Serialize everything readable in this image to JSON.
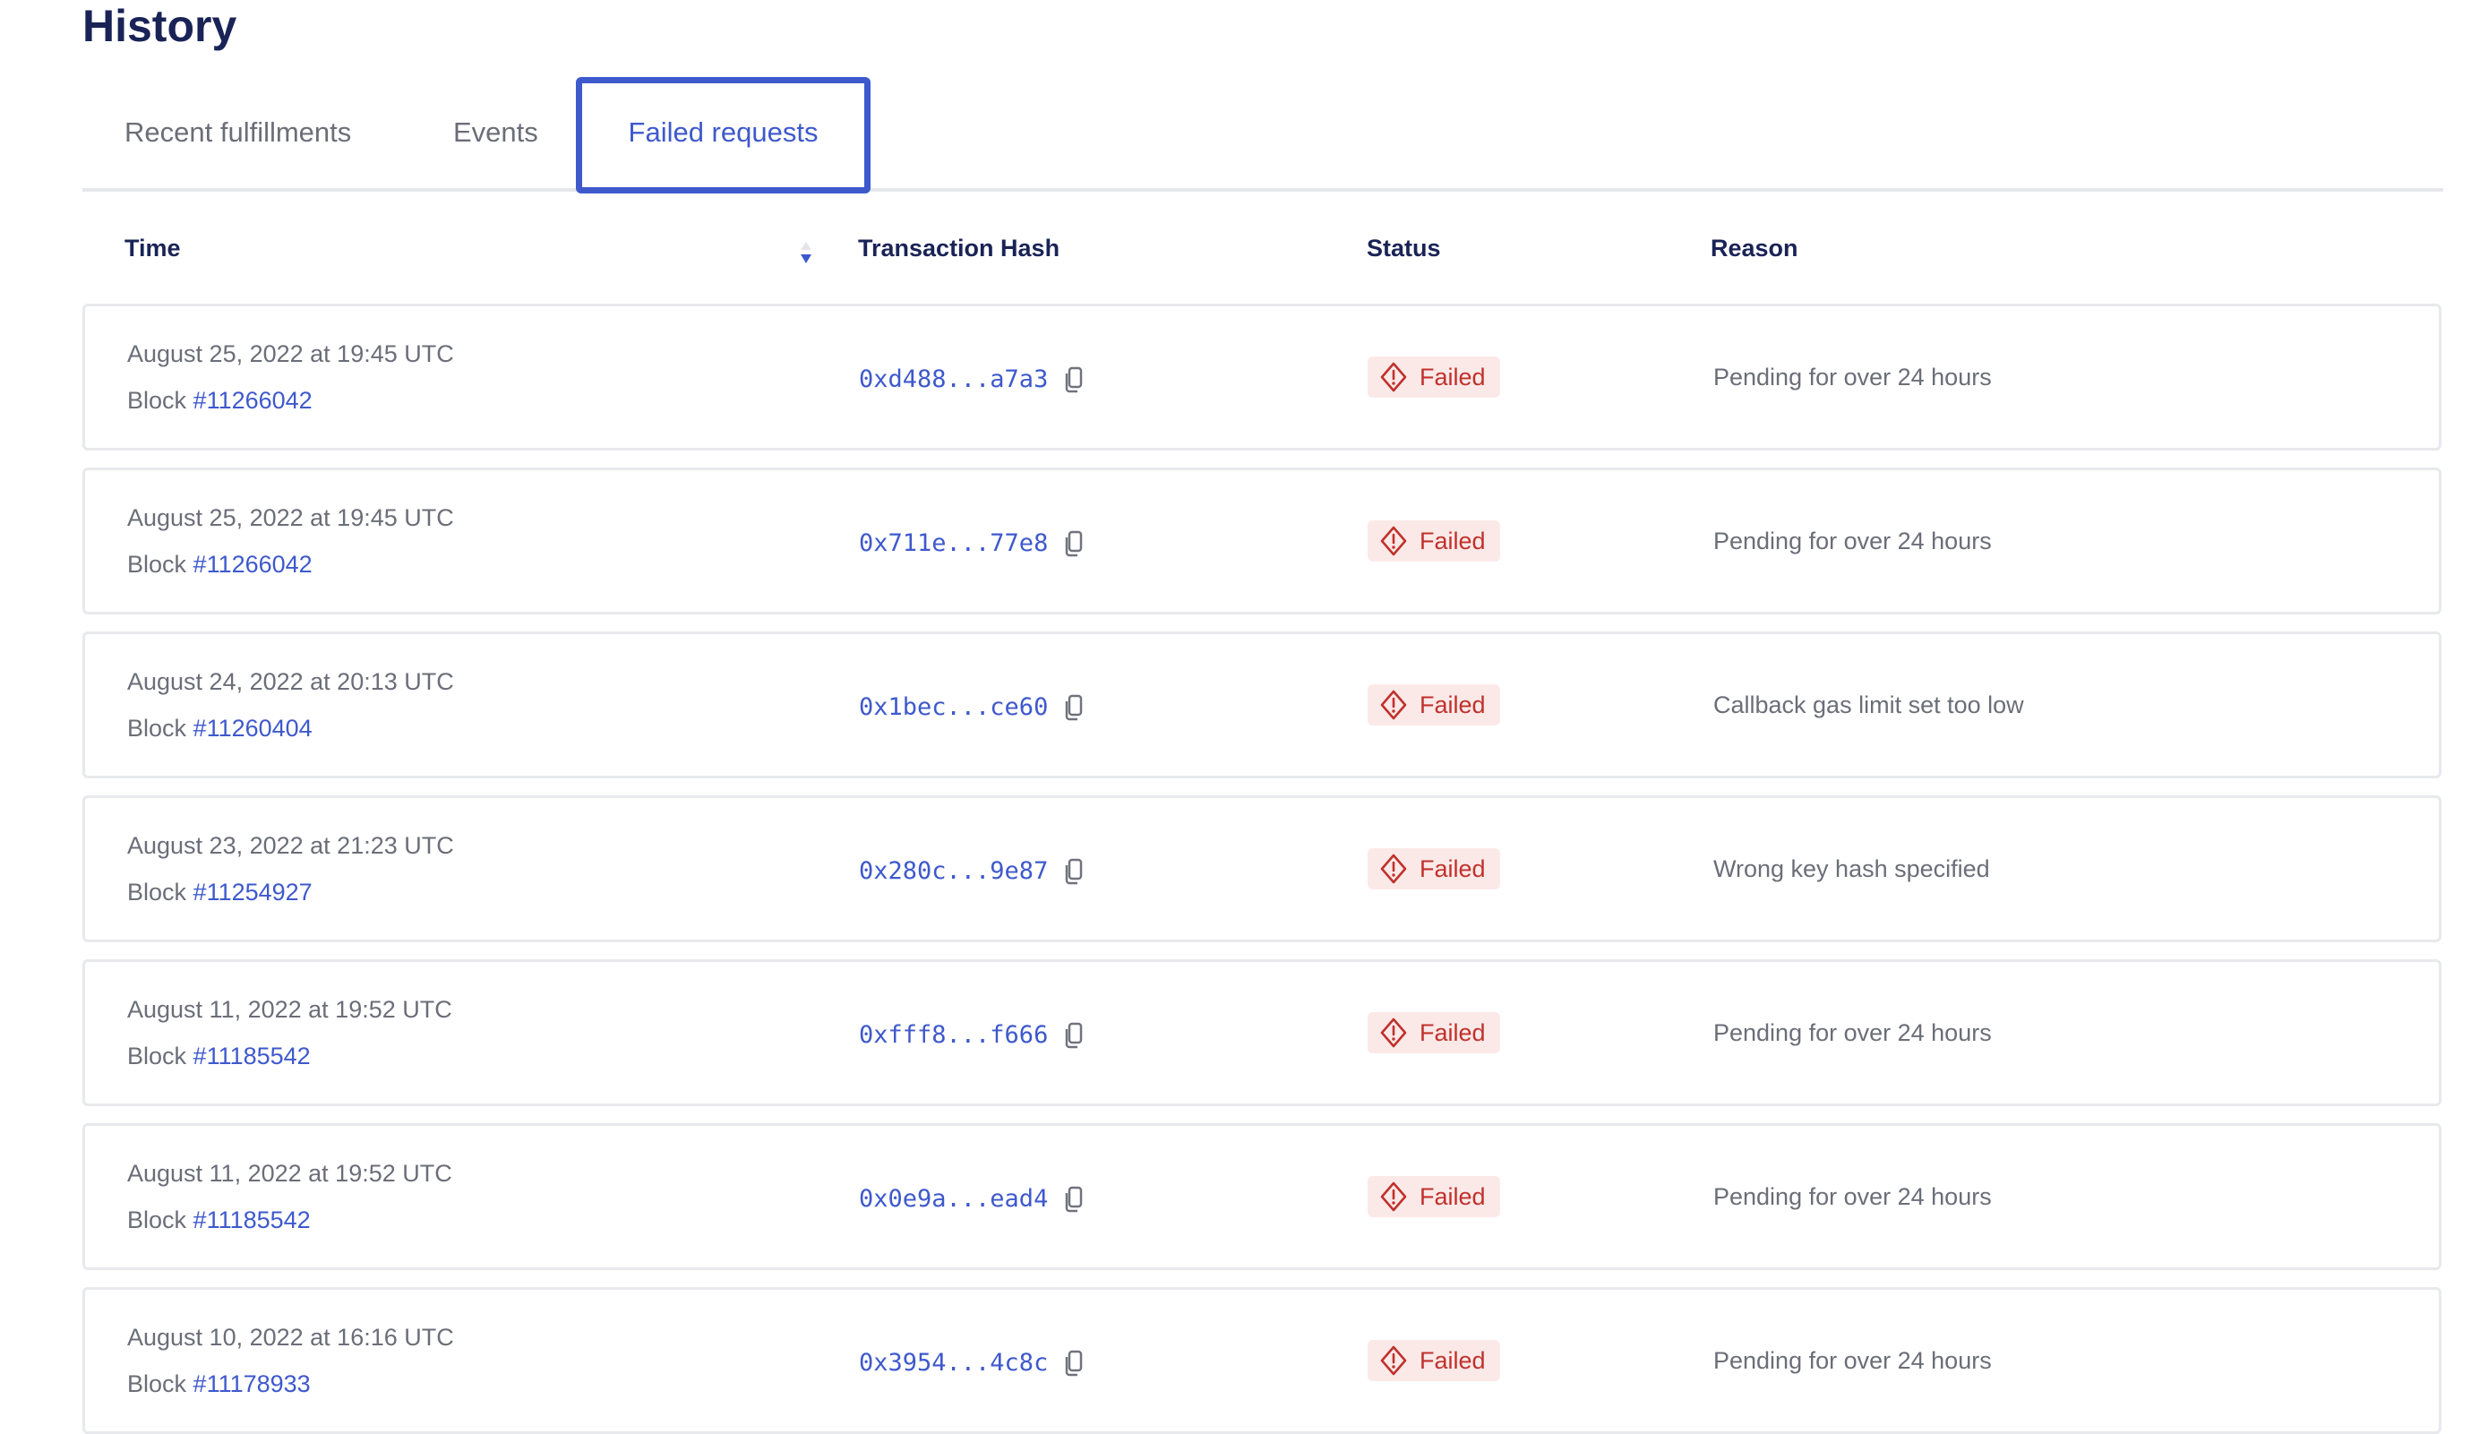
{
  "title": "History",
  "tabs": [
    {
      "label": "Recent fulfillments"
    },
    {
      "label": "Events"
    },
    {
      "label": "Failed requests",
      "active": true
    }
  ],
  "columns": {
    "time": "Time",
    "hash": "Transaction Hash",
    "status": "Status",
    "reason": "Reason"
  },
  "colors": {
    "accent": "#3e59cc",
    "failed": "#c0312b",
    "failed_bg": "#fbe9e8",
    "heading": "#1a2356"
  },
  "rows": [
    {
      "time": "August 25, 2022 at 19:45 UTC",
      "block_label": "Block",
      "block": "#11266042",
      "hash": "0xd488...a7a3",
      "status": "Failed",
      "reason": "Pending for over 24 hours"
    },
    {
      "time": "August 25, 2022 at 19:45 UTC",
      "block_label": "Block",
      "block": "#11266042",
      "hash": "0x711e...77e8",
      "status": "Failed",
      "reason": "Pending for over 24 hours"
    },
    {
      "time": "August 24, 2022 at 20:13 UTC",
      "block_label": "Block",
      "block": "#11260404",
      "hash": "0x1bec...ce60",
      "status": "Failed",
      "reason": "Callback gas limit set too low"
    },
    {
      "time": "August 23, 2022 at 21:23 UTC",
      "block_label": "Block",
      "block": "#11254927",
      "hash": "0x280c...9e87",
      "status": "Failed",
      "reason": "Wrong key hash specified"
    },
    {
      "time": "August 11, 2022 at 19:52 UTC",
      "block_label": "Block",
      "block": "#11185542",
      "hash": "0xfff8...f666",
      "status": "Failed",
      "reason": "Pending for over 24 hours"
    },
    {
      "time": "August 11, 2022 at 19:52 UTC",
      "block_label": "Block",
      "block": "#11185542",
      "hash": "0x0e9a...ead4",
      "status": "Failed",
      "reason": "Pending for over 24 hours"
    },
    {
      "time": "August 10, 2022 at 16:16 UTC",
      "block_label": "Block",
      "block": "#11178933",
      "hash": "0x3954...4c8c",
      "status": "Failed",
      "reason": "Pending for over 24 hours"
    }
  ]
}
